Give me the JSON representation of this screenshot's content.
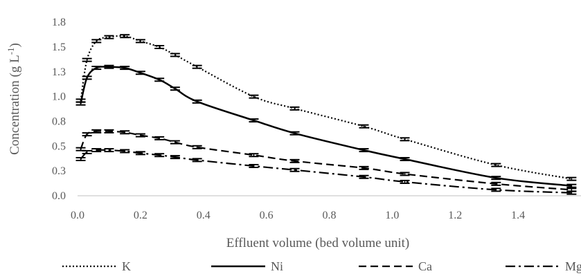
{
  "chart_data": {
    "type": "line",
    "title": "",
    "xlabel": "Effluent volume (bed volume unit)",
    "ylabel_main": "Concentration (g L",
    "ylabel_sup": "-1",
    "ylabel_close": ")",
    "xlim": [
      0.0,
      1.6
    ],
    "ylim": [
      0.0,
      1.8
    ],
    "x_ticks": [
      "0.0",
      "0.2",
      "0.4",
      "0.6",
      "0.8",
      "1.0",
      "1.2",
      "1.4"
    ],
    "x_tick_values": [
      0.0,
      0.2,
      0.4,
      0.6,
      0.8,
      1.0,
      1.2,
      1.4
    ],
    "y_ticks": [
      "0.0",
      "0.3",
      "0.5",
      "0.8",
      "1.0",
      "1.3",
      "1.5",
      "1.8"
    ],
    "y_tick_values": [
      0.0,
      0.25,
      0.5,
      0.75,
      1.0,
      1.25,
      1.5,
      1.75
    ],
    "grid": false,
    "legend_position": "bottom",
    "error_bars": true,
    "series": [
      {
        "name": "K",
        "style": "dotted",
        "color": "#000000",
        "x": [
          0.01,
          0.03,
          0.06,
          0.1,
          0.15,
          0.2,
          0.26,
          0.31,
          0.38,
          0.56,
          0.69,
          0.91,
          1.04,
          1.33,
          1.57
        ],
        "y": [
          0.96,
          1.37,
          1.56,
          1.6,
          1.61,
          1.56,
          1.5,
          1.42,
          1.3,
          1.0,
          0.88,
          0.7,
          0.57,
          0.31,
          0.17
        ]
      },
      {
        "name": "Ni",
        "style": "solid",
        "color": "#000000",
        "x": [
          0.01,
          0.03,
          0.06,
          0.1,
          0.15,
          0.2,
          0.26,
          0.31,
          0.38,
          0.56,
          0.69,
          0.91,
          1.04,
          1.33,
          1.57
        ],
        "y": [
          0.93,
          1.19,
          1.29,
          1.3,
          1.29,
          1.24,
          1.17,
          1.08,
          0.95,
          0.76,
          0.63,
          0.46,
          0.37,
          0.18,
          0.1
        ]
      },
      {
        "name": "Ca",
        "style": "dashed",
        "color": "#000000",
        "x": [
          0.01,
          0.03,
          0.06,
          0.1,
          0.15,
          0.2,
          0.26,
          0.31,
          0.38,
          0.56,
          0.69,
          0.91,
          1.04,
          1.33,
          1.57
        ],
        "y": [
          0.47,
          0.62,
          0.65,
          0.65,
          0.64,
          0.61,
          0.58,
          0.54,
          0.49,
          0.41,
          0.35,
          0.28,
          0.22,
          0.12,
          0.06
        ]
      },
      {
        "name": "Mg",
        "style": "dashdot",
        "color": "#000000",
        "x": [
          0.01,
          0.03,
          0.06,
          0.1,
          0.15,
          0.2,
          0.26,
          0.31,
          0.38,
          0.56,
          0.69,
          0.91,
          1.04,
          1.33,
          1.57
        ],
        "y": [
          0.37,
          0.44,
          0.46,
          0.46,
          0.45,
          0.43,
          0.41,
          0.39,
          0.36,
          0.3,
          0.26,
          0.19,
          0.14,
          0.06,
          0.03
        ]
      }
    ]
  }
}
